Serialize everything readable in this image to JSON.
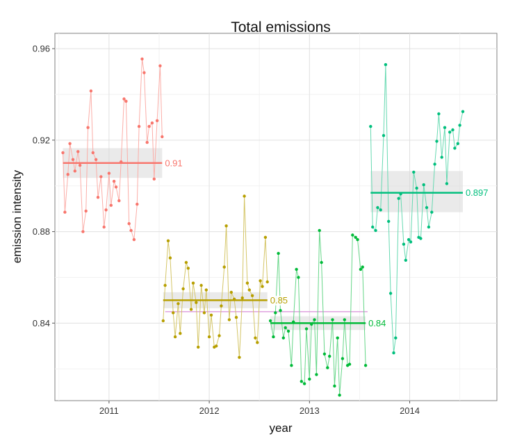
{
  "chart_data": {
    "type": "line",
    "title": "Total emissions",
    "xlabel": "year",
    "ylabel": "emission intensity",
    "xlim": [
      2010.46,
      2014.87
    ],
    "ylim": [
      0.8061,
      0.9667
    ],
    "xticks": [
      {
        "value": 2011,
        "label": "2011"
      },
      {
        "value": 2012,
        "label": "2012"
      },
      {
        "value": 2013,
        "label": "2013"
      },
      {
        "value": 2014,
        "label": "2014"
      }
    ],
    "yticks": [
      {
        "value": 0.84,
        "label": "0.84"
      },
      {
        "value": 0.88,
        "label": "0.88"
      },
      {
        "value": 0.92,
        "label": "0.92"
      },
      {
        "value": 0.96,
        "label": "0.96"
      }
    ],
    "grid": true,
    "legend": "none",
    "overall_mean": {
      "value": 0.845,
      "color": "#d98fd9",
      "x_range": [
        2011.56,
        2013.58
      ]
    },
    "series": [
      {
        "color": "#f8766d",
        "mean": 0.91,
        "mean_label": "0.91",
        "ci": [
          0.9035,
          0.9165
        ],
        "x": [
          2010.54,
          2010.56,
          2010.59,
          2010.61,
          2010.64,
          2010.66,
          2010.69,
          2010.71,
          2010.74,
          2010.77,
          2010.79,
          2010.82,
          2010.84,
          2010.87,
          2010.89,
          2010.92,
          2010.95,
          2010.97,
          2011.0,
          2011.02,
          2011.05,
          2011.07,
          2011.1,
          2011.12,
          2011.15,
          2011.17,
          2011.2,
          2011.22,
          2011.25,
          2011.28,
          2011.3,
          2011.33,
          2011.35,
          2011.38,
          2011.4,
          2011.43,
          2011.45,
          2011.48,
          2011.51,
          2011.53
        ],
        "y": [
          0.9145,
          0.8885,
          0.905,
          0.9185,
          0.9115,
          0.9065,
          0.915,
          0.909,
          0.88,
          0.889,
          0.9255,
          0.9415,
          0.9145,
          0.9115,
          0.895,
          0.904,
          0.882,
          0.8895,
          0.9055,
          0.8915,
          0.902,
          0.8995,
          0.8935,
          0.9105,
          0.938,
          0.937,
          0.8835,
          0.8805,
          0.8765,
          0.892,
          0.926,
          0.9555,
          0.9495,
          0.919,
          0.926,
          0.9275,
          0.903,
          0.9285,
          0.9525,
          0.9215
        ]
      },
      {
        "color": "#b79f00",
        "mean": 0.85,
        "mean_label": "0.85",
        "ci": [
          0.8465,
          0.8535
        ],
        "x": [
          2011.54,
          2011.56,
          2011.59,
          2011.61,
          2011.64,
          2011.66,
          2011.69,
          2011.71,
          2011.74,
          2011.77,
          2011.79,
          2011.82,
          2011.84,
          2011.87,
          2011.89,
          2011.92,
          2011.95,
          2011.97,
          2012.0,
          2012.02,
          2012.05,
          2012.07,
          2012.1,
          2012.12,
          2012.15,
          2012.17,
          2012.2,
          2012.22,
          2012.25,
          2012.27,
          2012.3,
          2012.33,
          2012.35,
          2012.38,
          2012.4,
          2012.43,
          2012.46,
          2012.48,
          2012.51,
          2012.53,
          2012.56,
          2012.58
        ],
        "y": [
          0.841,
          0.8565,
          0.876,
          0.8685,
          0.8445,
          0.834,
          0.8485,
          0.8355,
          0.855,
          0.8665,
          0.864,
          0.846,
          0.8575,
          0.849,
          0.8295,
          0.8565,
          0.8445,
          0.8545,
          0.834,
          0.8435,
          0.8295,
          0.83,
          0.8345,
          0.8475,
          0.8645,
          0.8825,
          0.8415,
          0.8535,
          0.8505,
          0.8425,
          0.825,
          0.851,
          0.8955,
          0.8575,
          0.8545,
          0.852,
          0.8335,
          0.8315,
          0.8585,
          0.856,
          0.8775,
          0.858
        ]
      },
      {
        "color": "#00ba38",
        "mean": 0.84,
        "mean_label": "0.84",
        "ci": [
          0.837,
          0.843
        ],
        "x": [
          2012.61,
          2012.64,
          2012.66,
          2012.69,
          2012.71,
          2012.74,
          2012.76,
          2012.79,
          2012.82,
          2012.84,
          2012.87,
          2012.89,
          2012.92,
          2012.95,
          2012.97,
          2013.0,
          2013.02,
          2013.05,
          2013.07,
          2013.1,
          2013.12,
          2013.15,
          2013.18,
          2013.2,
          2013.23,
          2013.25,
          2013.28,
          2013.3,
          2013.33,
          2013.35,
          2013.38,
          2013.4,
          2013.43,
          2013.46,
          2013.48,
          2013.51,
          2013.53,
          2013.56
        ],
        "y": [
          0.841,
          0.834,
          0.8445,
          0.8705,
          0.8455,
          0.8335,
          0.838,
          0.8365,
          0.8215,
          0.8405,
          0.8635,
          0.86,
          0.8145,
          0.8135,
          0.8375,
          0.8155,
          0.8395,
          0.8415,
          0.8175,
          0.8805,
          0.8665,
          0.8265,
          0.8205,
          0.8255,
          0.8415,
          0.8125,
          0.8335,
          0.8085,
          0.8245,
          0.8415,
          0.8215,
          0.822,
          0.8785,
          0.8775,
          0.8765,
          0.8635,
          0.8645,
          0.8215
        ]
      },
      {
        "color": "#00bf7d",
        "mean": 0.897,
        "mean_label": "0.897",
        "ci": [
          0.8885,
          0.9065
        ],
        "x": [
          2013.61,
          2013.63,
          2013.66,
          2013.68,
          2013.71,
          2013.74,
          2013.76,
          2013.79,
          2013.81,
          2013.84,
          2013.86,
          2013.89,
          2013.91,
          2013.94,
          2013.96,
          2013.99,
          2014.01,
          2014.04,
          2014.07,
          2014.09,
          2014.11,
          2014.14,
          2014.17,
          2014.19,
          2014.22,
          2014.25,
          2014.27,
          2014.29,
          2014.32,
          2014.35,
          2014.37,
          2014.4,
          2014.43,
          2014.45,
          2014.48,
          2014.5,
          2014.53
        ],
        "y": [
          0.926,
          0.882,
          0.8805,
          0.8905,
          0.8895,
          0.922,
          0.953,
          0.8845,
          0.853,
          0.827,
          0.8335,
          0.8945,
          0.8965,
          0.8745,
          0.8675,
          0.8765,
          0.8755,
          0.906,
          0.899,
          0.8775,
          0.877,
          0.9005,
          0.8905,
          0.882,
          0.8885,
          0.9095,
          0.9195,
          0.9315,
          0.9125,
          0.9255,
          0.901,
          0.9235,
          0.9245,
          0.9165,
          0.9185,
          0.9265,
          0.9325
        ]
      }
    ]
  }
}
